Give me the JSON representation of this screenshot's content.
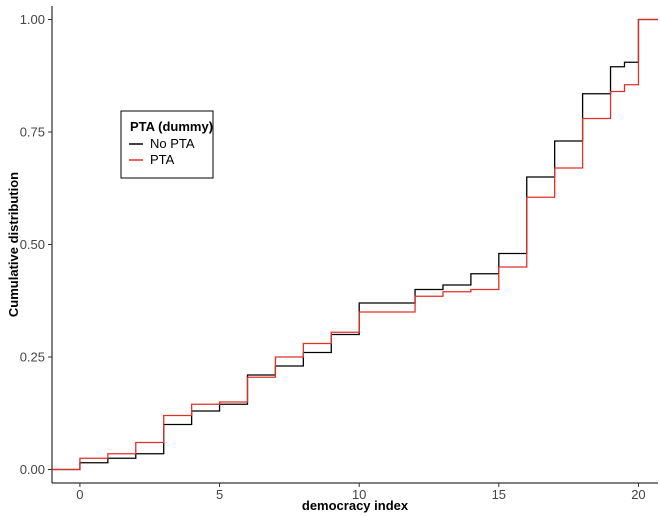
{
  "chart_data": {
    "type": "line",
    "subtype": "step",
    "title": "",
    "xlabel": "democracy index",
    "ylabel": "Cumulative distribution",
    "xlim": [
      -1,
      20.7
    ],
    "ylim": [
      -0.03,
      1.03
    ],
    "x_ticks": [
      0,
      5,
      10,
      15,
      20
    ],
    "x_tick_labels": [
      "0",
      "5",
      "10",
      "15",
      "20"
    ],
    "y_ticks": [
      0,
      0.25,
      0.5,
      0.75,
      1
    ],
    "y_tick_labels": [
      "0.00",
      "0.25",
      "0.50",
      "0.75",
      "1.00"
    ],
    "grid": false,
    "legend": {
      "title": "PTA (dummy)",
      "placement": "left-upper",
      "entries": [
        "No PTA",
        "PTA"
      ]
    },
    "series": [
      {
        "name": "No PTA",
        "color": "#000000",
        "x": [
          -1,
          0,
          1,
          2,
          3,
          4,
          5,
          6,
          7,
          8,
          9,
          10,
          11,
          12,
          13,
          14,
          15,
          16,
          17,
          18,
          19,
          19.5,
          20,
          20.7
        ],
        "y": [
          0,
          0.015,
          0.025,
          0.035,
          0.1,
          0.13,
          0.145,
          0.21,
          0.23,
          0.26,
          0.3,
          0.37,
          0.37,
          0.4,
          0.41,
          0.435,
          0.48,
          0.65,
          0.73,
          0.835,
          0.895,
          0.905,
          1.0,
          1.0
        ]
      },
      {
        "name": "PTA",
        "color": "#e0302a",
        "x": [
          -1,
          0,
          1,
          2,
          3,
          4,
          5,
          6,
          7,
          8,
          9,
          10,
          11,
          12,
          13,
          14,
          15,
          16,
          17,
          18,
          19,
          19.5,
          20,
          20.7
        ],
        "y": [
          0,
          0.025,
          0.035,
          0.06,
          0.12,
          0.145,
          0.15,
          0.205,
          0.25,
          0.28,
          0.305,
          0.35,
          0.35,
          0.385,
          0.395,
          0.4,
          0.45,
          0.605,
          0.67,
          0.78,
          0.84,
          0.855,
          1.0,
          1.0
        ]
      }
    ]
  }
}
